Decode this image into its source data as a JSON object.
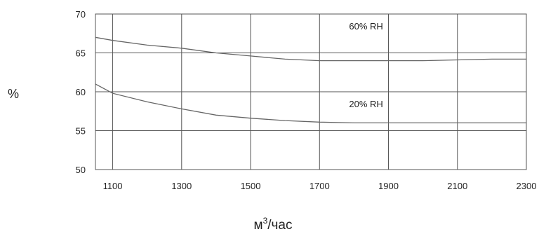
{
  "chart_data": {
    "type": "line",
    "xlabel": "м",
    "xlabel_sup": "3",
    "xlabel_suffix": "/час",
    "ylabel": "%",
    "xlim": [
      1050,
      2300
    ],
    "ylim": [
      50,
      70
    ],
    "xticks": [
      1100,
      1300,
      1500,
      1700,
      1900,
      2100,
      2300
    ],
    "yticks": [
      50,
      55,
      60,
      65,
      70
    ],
    "grid": true,
    "series": [
      {
        "name": "60% RH",
        "x": [
          1050,
          1100,
          1200,
          1300,
          1400,
          1500,
          1600,
          1700,
          1800,
          1900,
          2000,
          2100,
          2200,
          2300
        ],
        "y": [
          67.0,
          66.6,
          66.0,
          65.6,
          65.0,
          64.6,
          64.2,
          64.0,
          64.0,
          64.0,
          64.0,
          64.1,
          64.2,
          64.2
        ]
      },
      {
        "name": "20% RH",
        "x": [
          1050,
          1100,
          1200,
          1300,
          1400,
          1500,
          1600,
          1700,
          1800,
          1900,
          2000,
          2100,
          2200,
          2300
        ],
        "y": [
          61.0,
          59.8,
          58.7,
          57.8,
          57.0,
          56.6,
          56.3,
          56.1,
          56.0,
          56.0,
          56.0,
          56.0,
          56.0,
          56.0
        ]
      }
    ]
  }
}
